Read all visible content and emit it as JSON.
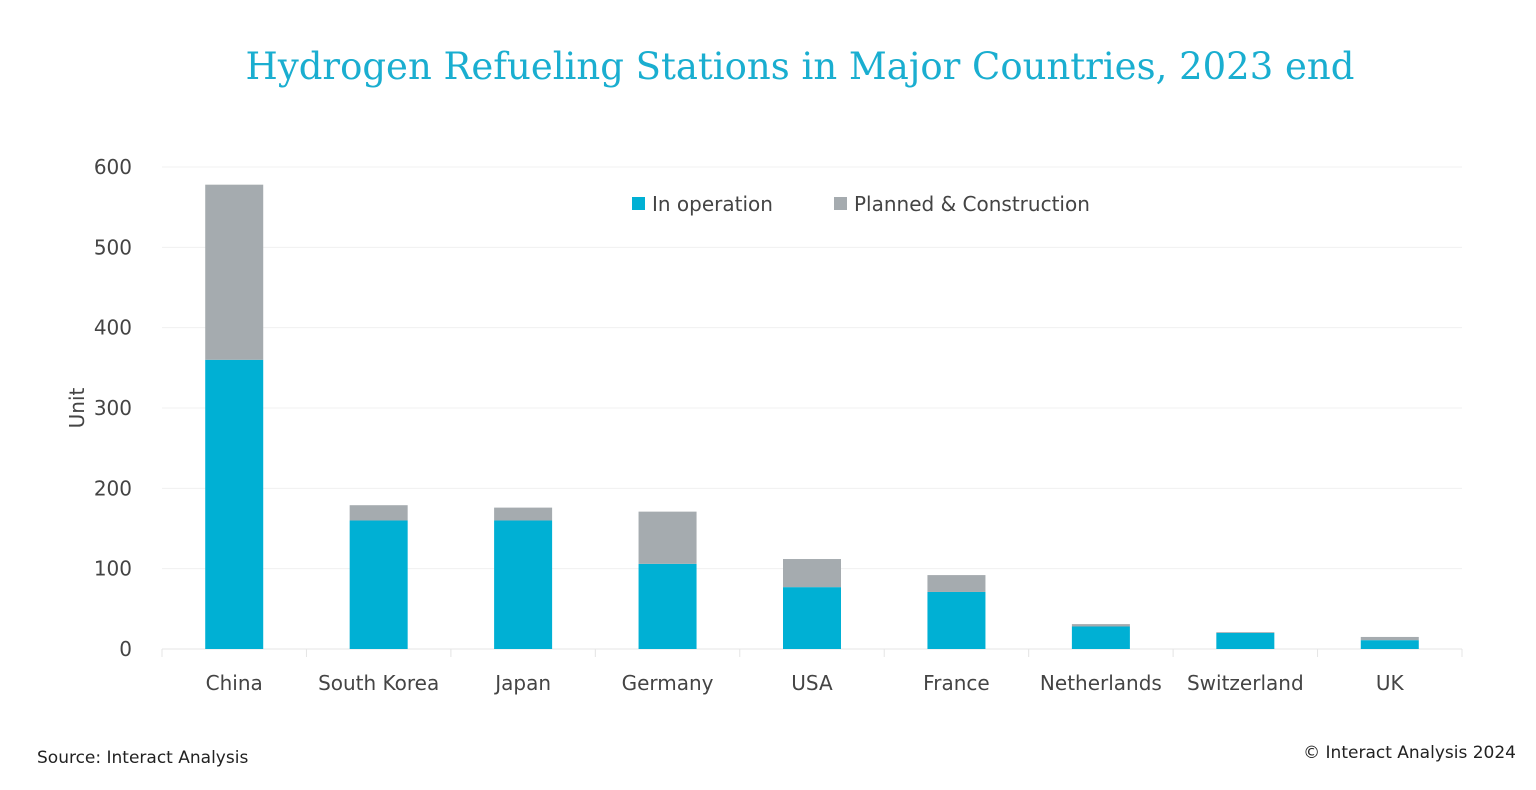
{
  "chart_data": {
    "type": "bar",
    "stacked": true,
    "title": "Hydrogen Refueling Stations in Major Countries, 2023 end",
    "xlabel": "",
    "ylabel": "Unit",
    "ylim": [
      0,
      600
    ],
    "yticks": [
      "0",
      "100",
      "200",
      "300",
      "400",
      "500",
      "600"
    ],
    "grid": true,
    "legend_position": "top-center",
    "categories": [
      "China",
      "South Korea",
      "Japan",
      "Germany",
      "USA",
      "France",
      "Netherlands",
      "Switzerland",
      "UK"
    ],
    "series": [
      {
        "name": "In operation",
        "color": "#00b0d4",
        "values": [
          360,
          160,
          160,
          106,
          77,
          71,
          28,
          20,
          11
        ]
      },
      {
        "name": "Planned & Construction",
        "color": "#a5abaf",
        "values": [
          218,
          19,
          16,
          65,
          35,
          21,
          3,
          1,
          4
        ]
      }
    ]
  },
  "footer": {
    "source": "Source: Interact Analysis",
    "copyright": "© Interact Analysis 2024"
  }
}
